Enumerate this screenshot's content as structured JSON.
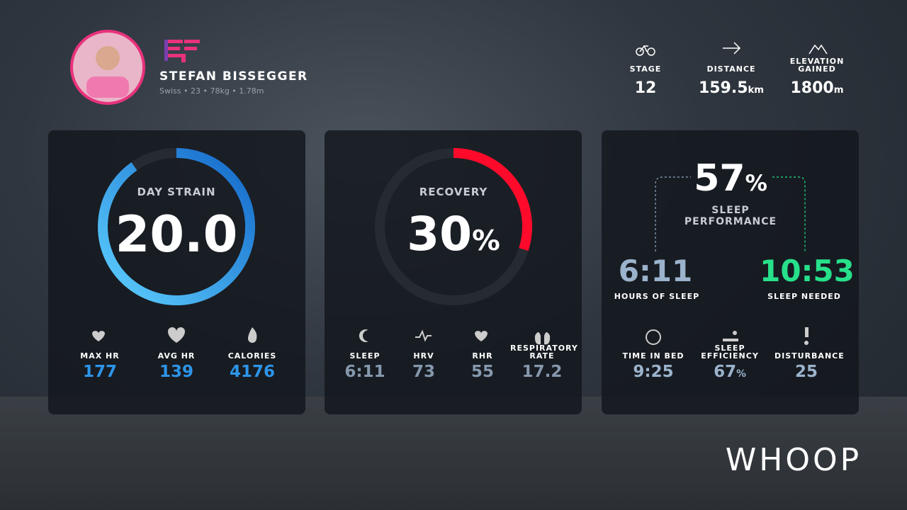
{
  "athlete": {
    "name": "STEFAN BISSEGGER",
    "details": "Swiss • 23 • 78kg • 1.78m"
  },
  "race": [
    {
      "label": "STAGE",
      "value": "12"
    },
    {
      "label": "DISTANCE",
      "value": "159.5",
      "unit": "km"
    },
    {
      "label": "ELEVATION GAINED",
      "value": "1800",
      "unit": "m"
    }
  ],
  "strain": {
    "title": "DAY STRAIN",
    "value": "20.0",
    "stats": [
      {
        "label": "MAX HR",
        "value": "177"
      },
      {
        "label": "AVG HR",
        "value": "139"
      },
      {
        "label": "CALORIES",
        "value": "4176"
      }
    ]
  },
  "recovery": {
    "title": "RECOVERY",
    "value": 30,
    "unit": "%",
    "stats": [
      {
        "label": "SLEEP",
        "value": "6:11"
      },
      {
        "label": "HRV",
        "value": "73"
      },
      {
        "label": "RHR",
        "value": "55"
      },
      {
        "label": "RESPIRATORY RATE",
        "value": "17.2"
      }
    ]
  },
  "sleep": {
    "performance": "57",
    "unit": "%",
    "title": "SLEEP PERFORMANCE",
    "hours": {
      "value": "6:11",
      "label": "HOURS OF SLEEP"
    },
    "needed": {
      "value": "10:53",
      "label": "SLEEP NEEDED"
    },
    "stats": [
      {
        "label": "TIME IN BED",
        "value": "9:25"
      },
      {
        "label": "SLEEP EFFICIENCY",
        "value": "67",
        "unit": "%"
      },
      {
        "label": "DISTURBANCE",
        "value": "25"
      }
    ]
  },
  "brand": "WHOOP"
}
